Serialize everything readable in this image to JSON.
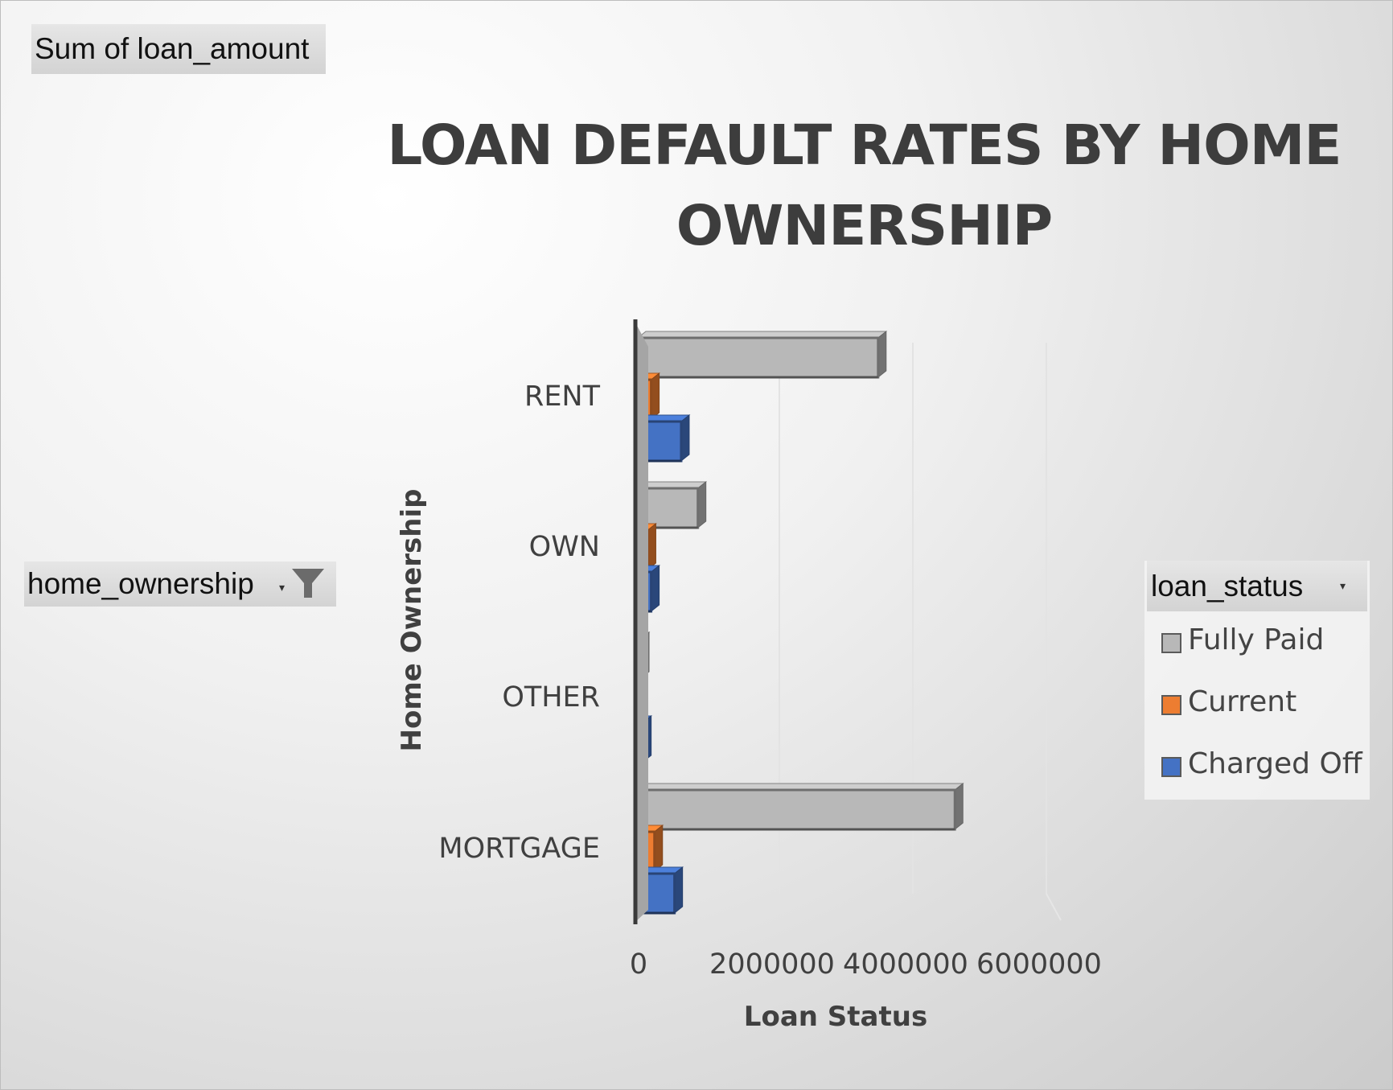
{
  "field_buttons": {
    "values": "Sum of loan_amount",
    "axis": "home_ownership",
    "legend": "loan_status"
  },
  "icons": {
    "filter": "funnel-icon",
    "dropdown": "chevron-down-icon"
  },
  "chart_data": {
    "type": "bar",
    "orientation": "horizontal",
    "style": "3d-clustered",
    "title": "LOAN DEFAULT RATES BY HOME OWNERSHIP",
    "xlabel": "Loan Status",
    "ylabel": "Home Ownership",
    "categories": [
      "MORTGAGE",
      "OTHER",
      "OWN",
      "RENT"
    ],
    "series": [
      {
        "name": "Fully Paid",
        "color": "#b8b8b8",
        "values": [
          4750000,
          30000,
          900000,
          3600000
        ]
      },
      {
        "name": "Current",
        "color": "#ed7d31",
        "values": [
          250000,
          0,
          150000,
          200000
        ]
      },
      {
        "name": "Charged Off",
        "color": "#4472c4",
        "values": [
          550000,
          80000,
          200000,
          650000
        ]
      }
    ],
    "xlim": [
      0,
      6000000
    ],
    "xticks": [
      "0",
      "2000000",
      "4000000",
      "6000000"
    ],
    "grid": true,
    "legend_position": "right"
  }
}
